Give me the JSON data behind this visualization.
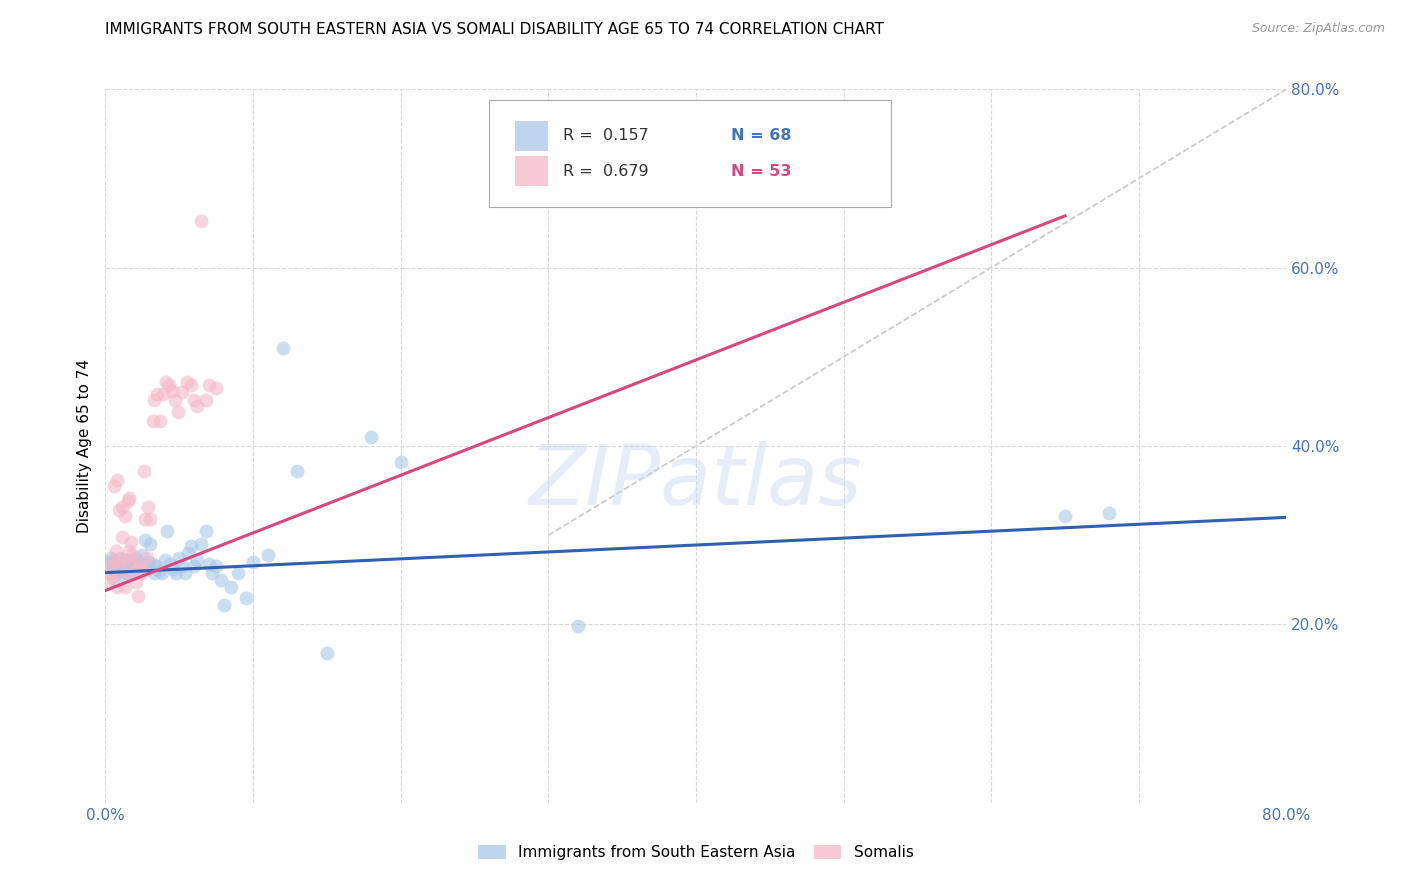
{
  "title": "IMMIGRANTS FROM SOUTH EASTERN ASIA VS SOMALI DISABILITY AGE 65 TO 74 CORRELATION CHART",
  "source": "Source: ZipAtlas.com",
  "ylabel": "Disability Age 65 to 74",
  "xlim": [
    0.0,
    0.8
  ],
  "ylim": [
    0.0,
    0.8
  ],
  "watermark": "ZIPatlas",
  "blue_color": "#a8c8e8",
  "pink_color": "#f4b8c8",
  "blue_line_color": "#3060b0",
  "pink_line_color": "#d84880",
  "dashed_line_color": "#c8c8c8",
  "grid_color": "#d8d8d8",
  "axis_label_color": "#4472c4",
  "legend_blue_label": "Immigrants from South Eastern Asia",
  "legend_pink_label": "Somalis",
  "r_blue": 0.157,
  "n_blue": 68,
  "r_pink": 0.679,
  "n_pink": 53,
  "blue_scatter_x": [
    0.002,
    0.003,
    0.004,
    0.005,
    0.006,
    0.006,
    0.007,
    0.008,
    0.009,
    0.01,
    0.01,
    0.011,
    0.012,
    0.013,
    0.014,
    0.015,
    0.016,
    0.017,
    0.018,
    0.019,
    0.02,
    0.021,
    0.022,
    0.023,
    0.024,
    0.025,
    0.026,
    0.027,
    0.028,
    0.029,
    0.03,
    0.032,
    0.033,
    0.034,
    0.036,
    0.038,
    0.04,
    0.042,
    0.044,
    0.046,
    0.048,
    0.05,
    0.052,
    0.054,
    0.056,
    0.058,
    0.06,
    0.062,
    0.065,
    0.068,
    0.07,
    0.072,
    0.075,
    0.078,
    0.08,
    0.085,
    0.09,
    0.095,
    0.1,
    0.11,
    0.12,
    0.13,
    0.15,
    0.18,
    0.2,
    0.32,
    0.65,
    0.68
  ],
  "blue_scatter_y": [
    0.27,
    0.265,
    0.275,
    0.268,
    0.272,
    0.26,
    0.265,
    0.258,
    0.27,
    0.275,
    0.262,
    0.268,
    0.255,
    0.272,
    0.26,
    0.268,
    0.255,
    0.265,
    0.272,
    0.258,
    0.268,
    0.275,
    0.262,
    0.27,
    0.265,
    0.278,
    0.268,
    0.295,
    0.262,
    0.27,
    0.29,
    0.268,
    0.258,
    0.265,
    0.26,
    0.258,
    0.272,
    0.305,
    0.268,
    0.262,
    0.258,
    0.275,
    0.265,
    0.258,
    0.28,
    0.288,
    0.265,
    0.272,
    0.29,
    0.305,
    0.268,
    0.258,
    0.265,
    0.25,
    0.222,
    0.242,
    0.258,
    0.23,
    0.27,
    0.278,
    0.51,
    0.372,
    0.168,
    0.41,
    0.382,
    0.198,
    0.322,
    0.325
  ],
  "pink_scatter_x": [
    0.002,
    0.003,
    0.004,
    0.005,
    0.006,
    0.006,
    0.007,
    0.008,
    0.008,
    0.009,
    0.01,
    0.011,
    0.011,
    0.012,
    0.013,
    0.013,
    0.014,
    0.015,
    0.016,
    0.016,
    0.017,
    0.018,
    0.019,
    0.02,
    0.021,
    0.022,
    0.023,
    0.024,
    0.025,
    0.026,
    0.027,
    0.028,
    0.029,
    0.03,
    0.032,
    0.033,
    0.035,
    0.037,
    0.039,
    0.041,
    0.043,
    0.045,
    0.047,
    0.049,
    0.052,
    0.055,
    0.058,
    0.06,
    0.062,
    0.065,
    0.068,
    0.07,
    0.075
  ],
  "pink_scatter_y": [
    0.248,
    0.258,
    0.265,
    0.252,
    0.272,
    0.355,
    0.282,
    0.242,
    0.362,
    0.328,
    0.27,
    0.332,
    0.298,
    0.272,
    0.242,
    0.322,
    0.258,
    0.338,
    0.282,
    0.342,
    0.292,
    0.278,
    0.27,
    0.26,
    0.248,
    0.232,
    0.265,
    0.258,
    0.262,
    0.372,
    0.318,
    0.275,
    0.332,
    0.318,
    0.428,
    0.452,
    0.458,
    0.428,
    0.458,
    0.472,
    0.468,
    0.462,
    0.452,
    0.438,
    0.46,
    0.472,
    0.468,
    0.452,
    0.445,
    0.652,
    0.452,
    0.468,
    0.465
  ],
  "blue_trend_x": [
    0.0,
    0.8
  ],
  "blue_trend_y": [
    0.258,
    0.32
  ],
  "pink_trend_x": [
    0.0,
    0.65
  ],
  "pink_trend_y": [
    0.238,
    0.658
  ],
  "diag_line_x": [
    0.3,
    0.8
  ],
  "diag_line_y": [
    0.3,
    0.8
  ]
}
